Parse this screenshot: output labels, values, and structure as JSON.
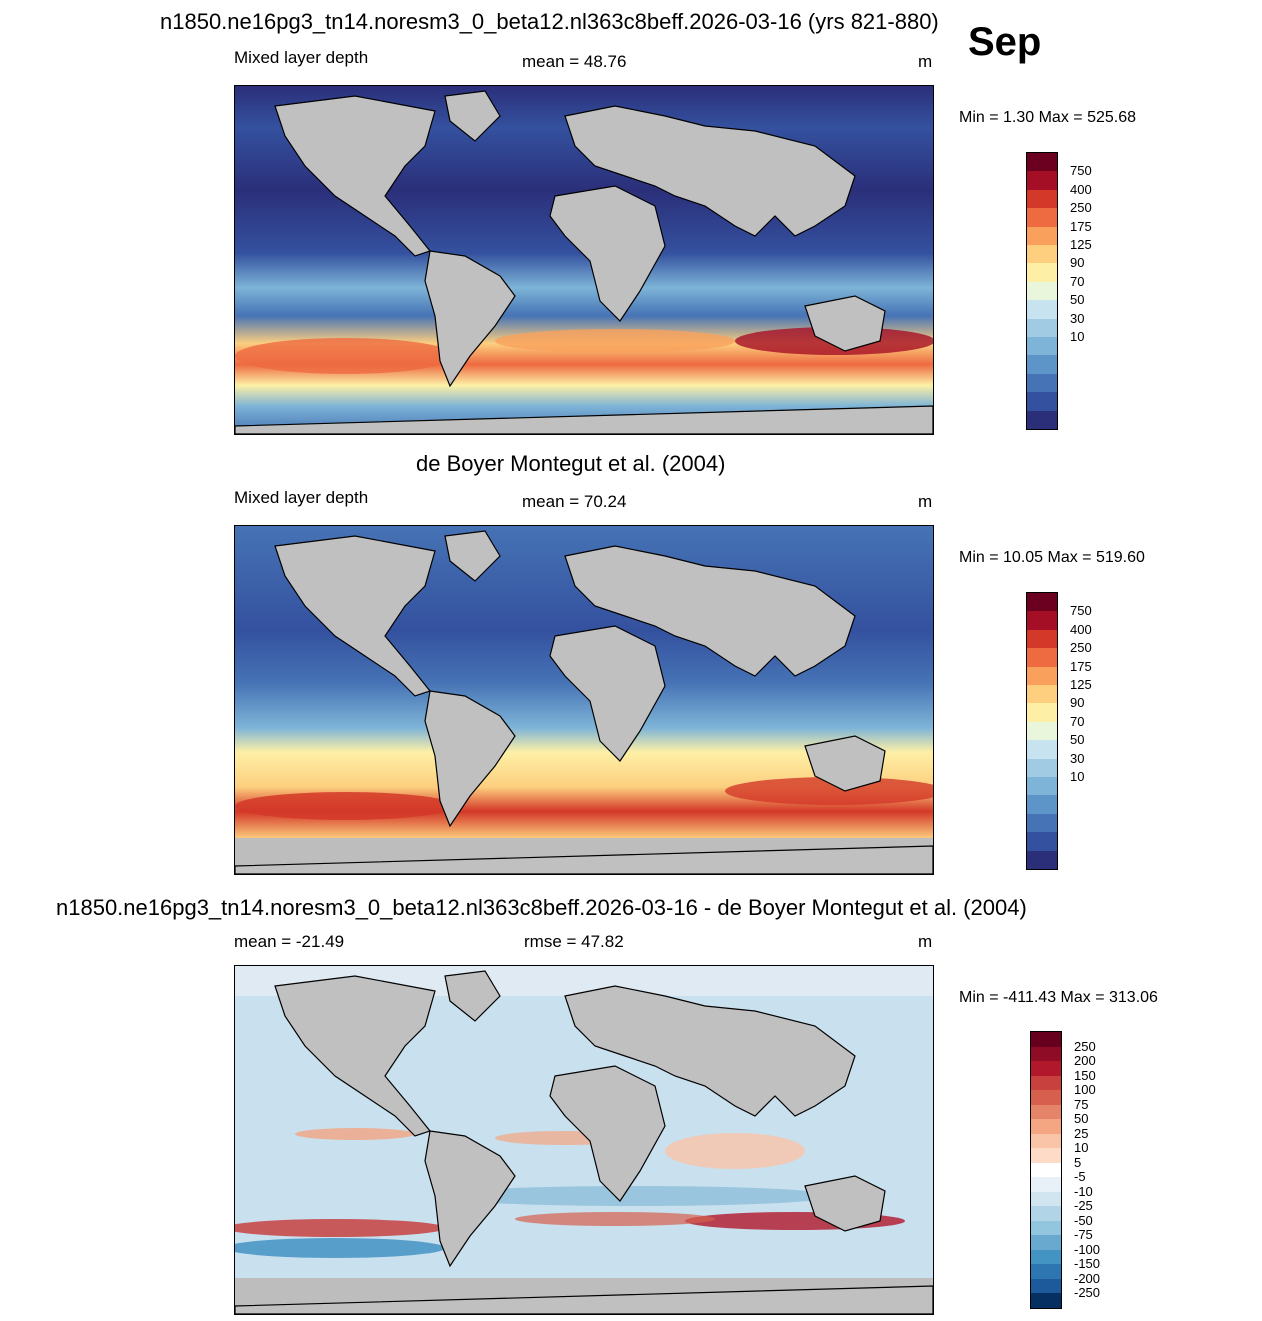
{
  "main_title": "n1850.ne16pg3_tn14.noresm3_0_beta12.nl363c8beff.2026-03-16 (yrs 821-880)",
  "month": "Sep",
  "panels": [
    {
      "header": "",
      "left_label": "Mixed layer depth",
      "center_label": "mean =  48.76",
      "units": "m",
      "minmax": "Min =    1.30 Max = 525.68",
      "colorbar": {
        "labels": [
          "750",
          "400",
          "250",
          "175",
          "125",
          "90",
          "70",
          "50",
          "30",
          "10"
        ],
        "colors": [
          "#6b0020",
          "#a50f26",
          "#d33828",
          "#ee6a41",
          "#f9a15c",
          "#fdcf7f",
          "#fdf0a6",
          "#eaf6dc",
          "#c7e3ef",
          "#a0cbe2",
          "#7eb4d7",
          "#5d95c8",
          "#4673b5",
          "#34519f",
          "#2b2f7a"
        ]
      }
    },
    {
      "header": "de Boyer Montegut et al. (2004)",
      "left_label": "Mixed layer depth",
      "center_label": "mean =  70.24",
      "units": "m",
      "minmax": "Min =  10.05 Max = 519.60",
      "colorbar": {
        "labels": [
          "750",
          "400",
          "250",
          "175",
          "125",
          "90",
          "70",
          "50",
          "30",
          "10"
        ],
        "colors": [
          "#6b0020",
          "#a50f26",
          "#d33828",
          "#ee6a41",
          "#f9a15c",
          "#fdcf7f",
          "#fdf0a6",
          "#eaf6dc",
          "#c7e3ef",
          "#a0cbe2",
          "#7eb4d7",
          "#5d95c8",
          "#4673b5",
          "#34519f",
          "#2b2f7a"
        ]
      }
    },
    {
      "header": "n1850.ne16pg3_tn14.noresm3_0_beta12.nl363c8beff.2026-03-16 - de Boyer Montegut et al. (2004)",
      "left_label": "mean = -21.49",
      "center_label": "rmse =  47.82",
      "units": "m",
      "minmax": "Min = -411.43 Max = 313.06",
      "colorbar": {
        "labels": [
          "250",
          "200",
          "150",
          "100",
          "75",
          "50",
          "25",
          "10",
          "5",
          "-5",
          "-10",
          "-25",
          "-50",
          "-75",
          "-100",
          "-150",
          "-200",
          "-250"
        ],
        "colors": [
          "#67001f",
          "#8e0c25",
          "#b2182b",
          "#c8413f",
          "#d6604d",
          "#e58468",
          "#f4a582",
          "#fac4a8",
          "#fddbc7",
          "#ffffff",
          "#e7f1f7",
          "#d1e5f0",
          "#b2d4e7",
          "#92c5de",
          "#6aa9cf",
          "#4393c3",
          "#2e76b2",
          "#1c5a9c",
          "#053061"
        ]
      }
    }
  ],
  "map_colors": {
    "land": "#c0c0c0",
    "ice": "#bdbdbd"
  }
}
